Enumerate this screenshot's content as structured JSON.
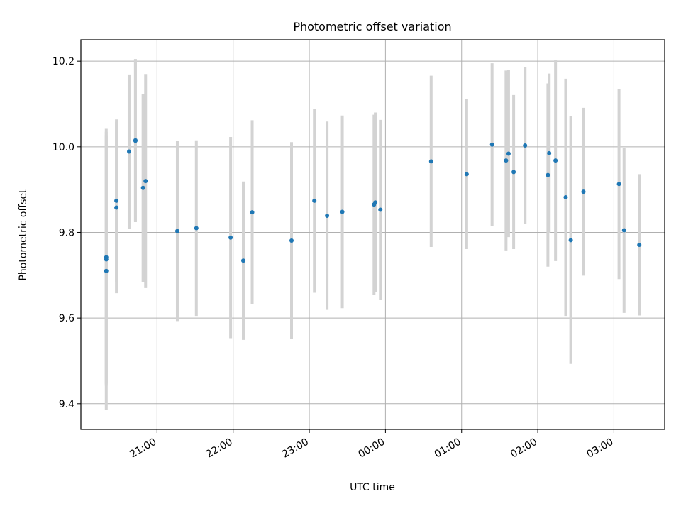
{
  "chart_data": {
    "type": "scatter",
    "title": "Photometric offset variation",
    "xlabel": "UTC time",
    "ylabel": "Photometric offset",
    "x_format": "time HH:MM (UTC), dates spanning midnight",
    "xlim": [
      "2024-01-01T20:00",
      "2024-01-02T03:40"
    ],
    "ylim": [
      9.34,
      10.25
    ],
    "grid": true,
    "x_ticks": [
      {
        "t": "2024-01-01T21:00",
        "label": "21:00"
      },
      {
        "t": "2024-01-01T22:00",
        "label": "22:00"
      },
      {
        "t": "2024-01-01T23:00",
        "label": "23:00"
      },
      {
        "t": "2024-01-02T00:00",
        "label": "00:00"
      },
      {
        "t": "2024-01-02T01:00",
        "label": "01:00"
      },
      {
        "t": "2024-01-02T02:00",
        "label": "02:00"
      },
      {
        "t": "2024-01-02T03:00",
        "label": "03:00"
      }
    ],
    "y_ticks": [
      {
        "v": 9.4,
        "label": "9.4"
      },
      {
        "v": 9.6,
        "label": "9.6"
      },
      {
        "v": 9.8,
        "label": "9.8"
      },
      {
        "v": 10.0,
        "label": "10.0"
      },
      {
        "v": 10.2,
        "label": "10.2"
      }
    ],
    "colors": {
      "point": "#1f77b4",
      "errorbar": "#d3d3d3",
      "grid": "#b0b0b0"
    },
    "points": [
      {
        "t": "2024-01-01T20:20",
        "y": 9.742,
        "err": 0.3
      },
      {
        "t": "2024-01-01T20:20",
        "y": 9.737,
        "err": 0.29
      },
      {
        "t": "2024-01-01T20:20",
        "y": 9.71,
        "err": 0.325
      },
      {
        "t": "2024-01-01T20:28",
        "y": 9.874,
        "err": 0.19
      },
      {
        "t": "2024-01-01T20:28",
        "y": 9.858,
        "err": 0.2
      },
      {
        "t": "2024-01-01T20:38",
        "y": 9.989,
        "err": 0.18
      },
      {
        "t": "2024-01-01T20:43",
        "y": 10.014,
        "err": 0.19
      },
      {
        "t": "2024-01-01T20:43",
        "y": 10.015,
        "err": 0.19
      },
      {
        "t": "2024-01-01T20:49",
        "y": 9.904,
        "err": 0.22
      },
      {
        "t": "2024-01-01T20:51",
        "y": 9.92,
        "err": 0.25
      },
      {
        "t": "2024-01-01T21:16",
        "y": 9.803,
        "err": 0.21
      },
      {
        "t": "2024-01-01T21:31",
        "y": 9.81,
        "err": 0.205
      },
      {
        "t": "2024-01-01T21:58",
        "y": 9.788,
        "err": 0.235
      },
      {
        "t": "2024-01-01T22:08",
        "y": 9.734,
        "err": 0.185
      },
      {
        "t": "2024-01-01T22:15",
        "y": 9.847,
        "err": 0.215
      },
      {
        "t": "2024-01-01T22:46",
        "y": 9.781,
        "err": 0.23
      },
      {
        "t": "2024-01-01T23:04",
        "y": 9.874,
        "err": 0.215
      },
      {
        "t": "2024-01-01T23:14",
        "y": 9.839,
        "err": 0.22
      },
      {
        "t": "2024-01-01T23:26",
        "y": 9.848,
        "err": 0.225
      },
      {
        "t": "2024-01-01T23:51",
        "y": 9.865,
        "err": 0.21
      },
      {
        "t": "2024-01-01T23:52",
        "y": 9.87,
        "err": 0.21
      },
      {
        "t": "2024-01-01T23:56",
        "y": 9.853,
        "err": 0.21
      },
      {
        "t": "2024-01-02T00:36",
        "y": 9.966,
        "err": 0.2
      },
      {
        "t": "2024-01-02T01:04",
        "y": 9.936,
        "err": 0.175
      },
      {
        "t": "2024-01-02T01:24",
        "y": 10.005,
        "err": 0.19
      },
      {
        "t": "2024-01-02T01:35",
        "y": 9.968,
        "err": 0.21
      },
      {
        "t": "2024-01-02T01:37",
        "y": 9.984,
        "err": 0.195
      },
      {
        "t": "2024-01-02T01:41",
        "y": 9.941,
        "err": 0.18
      },
      {
        "t": "2024-01-02T01:50",
        "y": 10.003,
        "err": 0.183
      },
      {
        "t": "2024-01-02T02:08",
        "y": 9.934,
        "err": 0.214
      },
      {
        "t": "2024-01-02T02:09",
        "y": 9.985,
        "err": 0.186
      },
      {
        "t": "2024-01-02T02:14",
        "y": 9.968,
        "err": 0.235
      },
      {
        "t": "2024-01-02T02:22",
        "y": 9.882,
        "err": 0.277
      },
      {
        "t": "2024-01-02T02:26",
        "y": 9.782,
        "err": 0.289
      },
      {
        "t": "2024-01-02T02:36",
        "y": 9.895,
        "err": 0.196
      },
      {
        "t": "2024-01-02T03:04",
        "y": 9.913,
        "err": 0.222
      },
      {
        "t": "2024-01-02T03:08",
        "y": 9.805,
        "err": 0.193
      },
      {
        "t": "2024-01-02T03:20",
        "y": 9.771,
        "err": 0.165
      }
    ]
  }
}
